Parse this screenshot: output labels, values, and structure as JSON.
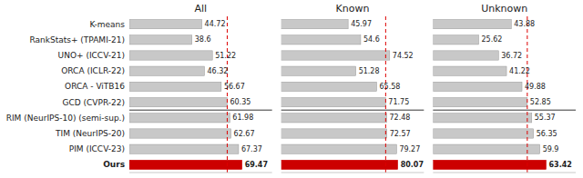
{
  "chart_data": [
    {
      "type": "bar",
      "orientation": "horizontal",
      "title": "All",
      "categories": [
        "K-means",
        "RankStats+ (TPAMI-21)",
        "UNO+ (ICCV-21)",
        "ORCA (ICLR-22)",
        "ORCA - ViTB16",
        "GCD (CVPR-22)",
        "RIM (NeurIPS-10) (semi-sup.)",
        "TIM (NeurIPS-20)",
        "PIM (ICCV-23)",
        "Ours"
      ],
      "values": [
        44.72,
        38.6,
        51.22,
        46.32,
        56.67,
        60.35,
        61.98,
        62.67,
        67.37,
        69.47
      ],
      "colors": [
        "#c8c8c8",
        "#c8c8c8",
        "#c8c8c8",
        "#c8c8c8",
        "#c8c8c8",
        "#c8c8c8",
        "#c8c8c8",
        "#c8c8c8",
        "#c8c8c8",
        "#cc0000"
      ],
      "xlim": [
        0,
        88
      ],
      "xticks": [],
      "data_labels": true,
      "tick_labels": "y",
      "grid": false,
      "reference_line": 60.35,
      "reference_line_color": "#dd0000"
    },
    {
      "type": "bar",
      "orientation": "horizontal",
      "title": "Known",
      "categories": [
        "K-means",
        "RankStats+ (TPAMI-21)",
        "UNO+ (ICCV-21)",
        "ORCA (ICLR-22)",
        "ORCA - ViTB16",
        "GCD (CVPR-22)",
        "RIM (NeurIPS-10) (semi-sup.)",
        "TIM (NeurIPS-20)",
        "PIM (ICCV-23)",
        "Ours"
      ],
      "values": [
        45.97,
        54.6,
        74.52,
        51.28,
        65.58,
        71.75,
        72.48,
        72.57,
        79.27,
        80.07
      ],
      "colors": [
        "#c8c8c8",
        "#c8c8c8",
        "#c8c8c8",
        "#c8c8c8",
        "#c8c8c8",
        "#c8c8c8",
        "#c8c8c8",
        "#c8c8c8",
        "#c8c8c8",
        "#cc0000"
      ],
      "xlim": [
        0,
        98
      ],
      "xticks": [],
      "data_labels": true,
      "tick_labels": false,
      "grid": false,
      "reference_line": 71.75,
      "reference_line_color": "#dd0000"
    },
    {
      "type": "bar",
      "orientation": "horizontal",
      "title": "Unknown",
      "categories": [
        "K-means",
        "RankStats+ (TPAMI-21)",
        "UNO+ (ICCV-21)",
        "ORCA (ICLR-22)",
        "ORCA - ViTB16",
        "GCD (CVPR-22)",
        "RIM (NeurIPS-10) (semi-sup.)",
        "TIM (NeurIPS-20)",
        "PIM (ICCV-23)",
        "Ours"
      ],
      "values": [
        43.88,
        25.62,
        36.72,
        41.22,
        49.88,
        52.85,
        55.37,
        56.35,
        59.9,
        63.42
      ],
      "colors": [
        "#c8c8c8",
        "#c8c8c8",
        "#c8c8c8",
        "#c8c8c8",
        "#c8c8c8",
        "#c8c8c8",
        "#c8c8c8",
        "#c8c8c8",
        "#c8c8c8",
        "#cc0000"
      ],
      "xlim": [
        0,
        80
      ],
      "xticks": [],
      "data_labels": true,
      "tick_labels": false,
      "grid": false,
      "reference_line": 52.85,
      "reference_line_color": "#dd0000"
    }
  ]
}
